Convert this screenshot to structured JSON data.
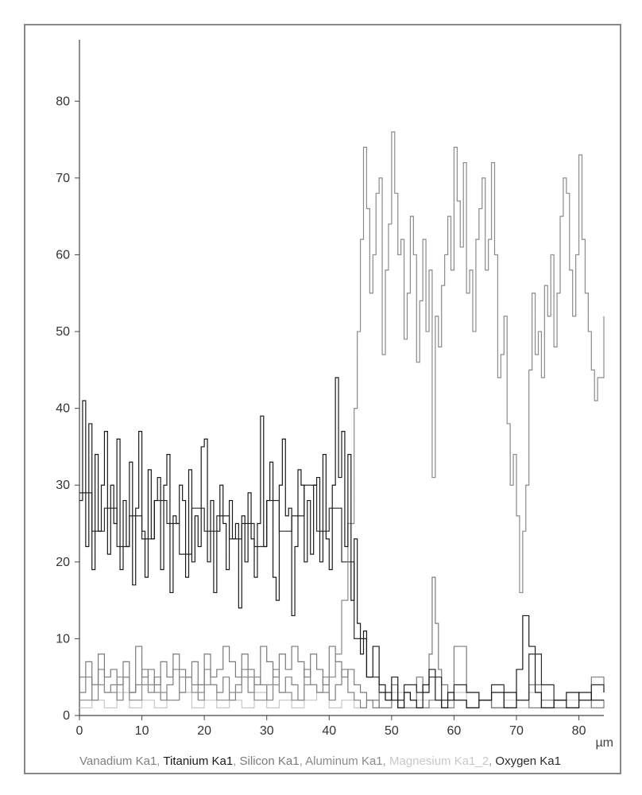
{
  "chart": {
    "type": "line-step",
    "background_color": "#ffffff",
    "border_color": "#888888",
    "axis_color": "#444444",
    "tick_fontsize": 16,
    "legend_fontsize": 15,
    "line_width": 1.2,
    "xlim": [
      0,
      84
    ],
    "ylim": [
      0,
      88
    ],
    "xtick_step": 10,
    "ytick_step": 10,
    "xticks": [
      0,
      10,
      20,
      30,
      40,
      50,
      60,
      70,
      80
    ],
    "yticks": [
      0,
      10,
      20,
      30,
      40,
      50,
      60,
      70,
      80
    ],
    "xunit": "µm",
    "legend_items": [
      {
        "label": "Vanadium Ka1",
        "color": "#808080"
      },
      {
        "label": "Titanium Ka1",
        "color": "#1a1a1a"
      },
      {
        "label": "Silicon Ka1",
        "color": "#7a7a7a"
      },
      {
        "label": "Aluminum Ka1",
        "color": "#8a8a8a"
      },
      {
        "label": "Magnesium Ka1_2",
        "color": "#c8c8c8"
      },
      {
        "label": "Oxygen Ka1",
        "color": "#2a2a2a"
      }
    ],
    "series": {
      "titanium": {
        "color": "#1a1a1a",
        "x": [
          0,
          0.5,
          1,
          1.5,
          2,
          2.5,
          3,
          3.5,
          4,
          4.5,
          5,
          5.5,
          6,
          6.5,
          7,
          7.5,
          8,
          8.5,
          9,
          9.5,
          10,
          10.5,
          11,
          11.5,
          12,
          12.5,
          13,
          13.5,
          14,
          14.5,
          15,
          15.5,
          16,
          16.5,
          17,
          17.5,
          18,
          18.5,
          19,
          19.5,
          20,
          20.5,
          21,
          21.5,
          22,
          22.5,
          23,
          23.5,
          24,
          24.5,
          25,
          25.5,
          26,
          26.5,
          27,
          27.5,
          28,
          28.5,
          29,
          29.5,
          30,
          30.5,
          31,
          31.5,
          32,
          32.5,
          33,
          33.5,
          34,
          34.5,
          35,
          35.5,
          36,
          36.5,
          37,
          37.5,
          38,
          38.5,
          39,
          39.5,
          40,
          40.5,
          41,
          41.5,
          42,
          42.5,
          43,
          43.5,
          44,
          44.5,
          45,
          45.5,
          46,
          47,
          48,
          49,
          50,
          51,
          52,
          53,
          54,
          55,
          56,
          57,
          58,
          59,
          60,
          62,
          64,
          66,
          68,
          70,
          71,
          72,
          73,
          74,
          76,
          78,
          80,
          82,
          84
        ],
        "y": [
          28,
          41,
          22,
          38,
          19,
          34,
          24,
          30,
          37,
          21,
          30,
          25,
          36,
          19,
          28,
          22,
          33,
          17,
          27,
          37,
          24,
          18,
          32,
          23,
          28,
          31,
          19,
          30,
          34,
          16,
          26,
          25,
          30,
          28,
          18,
          32,
          20,
          26,
          22,
          35,
          36,
          20,
          28,
          16,
          24,
          30,
          25,
          19,
          28,
          23,
          25,
          14,
          26,
          20,
          29,
          23,
          18,
          25,
          39,
          22,
          28,
          33,
          18,
          15,
          30,
          36,
          26,
          27,
          13,
          22,
          32,
          30,
          20,
          28,
          21,
          30,
          31,
          20,
          34,
          23,
          19,
          30,
          44,
          31,
          37,
          22,
          34,
          15,
          23,
          12,
          8,
          11,
          5,
          9,
          4,
          2,
          5,
          1,
          3,
          2,
          1,
          4,
          6,
          2,
          1,
          3,
          2,
          1,
          2,
          3,
          1,
          6,
          13,
          9,
          3,
          1,
          2,
          1,
          3,
          2
        ]
      },
      "aluminum": {
        "color": "#8a8a8a",
        "x": [
          0,
          2,
          4,
          6,
          8,
          10,
          12,
          14,
          16,
          18,
          20,
          22,
          24,
          26,
          28,
          30,
          32,
          34,
          36,
          38,
          40,
          41,
          42,
          43,
          44,
          44.5,
          45,
          45.5,
          46,
          46.5,
          47,
          47.5,
          48,
          48.5,
          49,
          49.5,
          50,
          50.5,
          51,
          51.5,
          52,
          52.5,
          53,
          53.5,
          54,
          54.5,
          55,
          55.5,
          56,
          56.5,
          57,
          57.5,
          58,
          58.5,
          59,
          59.5,
          60,
          60.5,
          61,
          61.5,
          62,
          62.5,
          63,
          63.5,
          64,
          64.5,
          65,
          65.5,
          66,
          66.5,
          67,
          67.5,
          68,
          68.5,
          69,
          69.5,
          70,
          70.5,
          71,
          71.5,
          72,
          72.5,
          73,
          73.5,
          74,
          74.5,
          75,
          75.5,
          76,
          76.5,
          77,
          77.5,
          78,
          78.5,
          79,
          79.5,
          80,
          80.5,
          81,
          81.5,
          82,
          82.5,
          83,
          84
        ],
        "y": [
          2,
          4,
          3,
          5,
          2,
          4,
          3,
          2,
          5,
          3,
          4,
          2,
          3,
          5,
          2,
          4,
          3,
          2,
          4,
          3,
          5,
          8,
          15,
          25,
          40,
          50,
          62,
          74,
          66,
          55,
          60,
          68,
          70,
          47,
          58,
          64,
          76,
          68,
          60,
          62,
          49,
          55,
          65,
          60,
          46,
          54,
          62,
          50,
          58,
          31,
          52,
          48,
          56,
          60,
          65,
          58,
          74,
          67,
          61,
          72,
          55,
          58,
          50,
          62,
          66,
          70,
          58,
          62,
          72,
          60,
          44,
          47,
          52,
          38,
          30,
          34,
          26,
          16,
          24,
          30,
          45,
          55,
          47,
          50,
          44,
          56,
          52,
          60,
          48,
          55,
          65,
          70,
          68,
          58,
          52,
          60,
          73,
          62,
          55,
          50,
          45,
          41,
          44,
          52
        ]
      },
      "silicon": {
        "color": "#7a7a7a",
        "x": [
          0,
          1,
          2,
          3,
          4,
          5,
          6,
          7,
          8,
          9,
          10,
          11,
          12,
          13,
          14,
          15,
          16,
          17,
          18,
          19,
          20,
          21,
          22,
          23,
          24,
          25,
          26,
          27,
          28,
          29,
          30,
          31,
          32,
          33,
          34,
          35,
          36,
          37,
          38,
          39,
          40,
          41,
          42,
          43,
          44,
          45,
          46,
          47,
          48,
          49,
          50,
          51,
          52,
          53,
          54,
          55,
          56,
          56.5,
          57,
          57.5,
          58,
          59,
          60,
          62,
          64,
          66,
          68,
          70,
          72,
          74,
          76,
          78,
          80,
          82,
          84
        ],
        "y": [
          5,
          7,
          4,
          8,
          5,
          6,
          4,
          7,
          3,
          9,
          5,
          6,
          4,
          7,
          5,
          8,
          6,
          5,
          7,
          4,
          8,
          5,
          6,
          9,
          7,
          5,
          8,
          6,
          4,
          9,
          7,
          5,
          8,
          6,
          9,
          7,
          5,
          8,
          6,
          4,
          9,
          7,
          5,
          6,
          4,
          3,
          2,
          1,
          3,
          2,
          4,
          1,
          3,
          2,
          5,
          3,
          8,
          18,
          12,
          6,
          4,
          2,
          9,
          3,
          2,
          1,
          3,
          2,
          4,
          1,
          2,
          3,
          2,
          5,
          3
        ]
      },
      "vanadium": {
        "color": "#808080",
        "x": [
          0,
          1,
          2,
          3,
          4,
          5,
          6,
          7,
          8,
          9,
          10,
          11,
          12,
          13,
          14,
          15,
          16,
          17,
          18,
          19,
          20,
          21,
          22,
          23,
          24,
          25,
          26,
          27,
          28,
          29,
          30,
          31,
          32,
          33,
          34,
          35,
          36,
          37,
          38,
          39,
          40,
          41,
          42,
          43,
          44,
          45,
          46,
          48,
          50,
          52,
          54,
          56,
          58,
          60,
          62,
          64,
          66,
          68,
          70,
          72,
          74,
          76,
          78,
          80,
          82,
          84
        ],
        "y": [
          3,
          5,
          2,
          6,
          3,
          4,
          2,
          5,
          3,
          4,
          6,
          3,
          5,
          2,
          4,
          6,
          3,
          5,
          4,
          2,
          6,
          4,
          3,
          5,
          2,
          4,
          6,
          3,
          5,
          4,
          2,
          6,
          3,
          5,
          4,
          2,
          6,
          4,
          3,
          5,
          2,
          4,
          6,
          3,
          2,
          1,
          2,
          1,
          2,
          1,
          1,
          2,
          1,
          2,
          1,
          2,
          1,
          1,
          2,
          1,
          2,
          1,
          1,
          2,
          1,
          2
        ]
      },
      "magnesium": {
        "color": "#c8c8c8",
        "x": [
          0,
          2,
          4,
          6,
          8,
          10,
          12,
          14,
          16,
          18,
          20,
          22,
          24,
          26,
          28,
          30,
          32,
          34,
          36,
          38,
          40,
          42,
          44,
          46,
          48,
          50,
          52,
          54,
          56,
          58,
          60,
          62,
          64,
          66,
          68,
          70,
          72,
          74,
          76,
          78,
          80,
          82,
          84
        ],
        "y": [
          1,
          2,
          1,
          3,
          1,
          2,
          1,
          2,
          3,
          1,
          2,
          1,
          2,
          1,
          3,
          1,
          2,
          1,
          2,
          3,
          1,
          2,
          1,
          2,
          1,
          3,
          1,
          2,
          1,
          2,
          3,
          1,
          2,
          1,
          2,
          1,
          3,
          2,
          1,
          2,
          1,
          2,
          1
        ]
      },
      "oxygen": {
        "color": "#2a2a2a",
        "x": [
          0,
          2,
          4,
          6,
          8,
          10,
          12,
          14,
          16,
          18,
          20,
          22,
          24,
          26,
          28,
          30,
          32,
          34,
          36,
          38,
          40,
          42,
          44,
          46,
          48,
          50,
          52,
          54,
          56,
          58,
          60,
          62,
          64,
          66,
          68,
          70,
          72,
          74,
          76,
          78,
          80,
          82,
          84
        ],
        "y": [
          29,
          24,
          27,
          22,
          26,
          23,
          28,
          25,
          21,
          27,
          24,
          26,
          23,
          25,
          22,
          28,
          24,
          26,
          30,
          24,
          27,
          20,
          10,
          5,
          3,
          2,
          4,
          3,
          5,
          2,
          4,
          3,
          2,
          4,
          3,
          2,
          8,
          4,
          2,
          3,
          2,
          4,
          3
        ]
      }
    }
  }
}
